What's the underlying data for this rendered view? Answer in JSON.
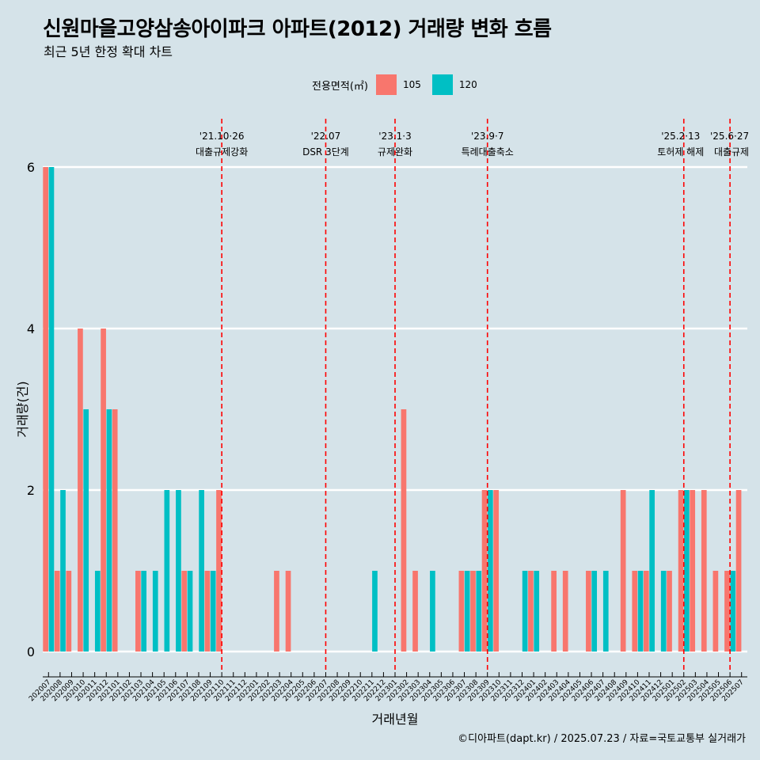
{
  "title": "신원마을고양삼송아이파크 아파트(2012) 거래량 변화 흐름",
  "subtitle": "최근 5년 한정 확대 차트",
  "caption": "©디아파트(dapt.kr) / 2025.07.23 / 자료=국토교통부 실거래가",
  "legend": {
    "title": "전용면적(㎡)",
    "items": [
      {
        "label": "105",
        "color": "#f8766d"
      },
      {
        "label": "120",
        "color": "#00bfc4"
      }
    ]
  },
  "chart_data": {
    "type": "bar",
    "title": "신원마을고양삼송아이파크 아파트(2012) 거래량 변화 흐름",
    "xlabel": "거래년월",
    "ylabel": "거래량(건)",
    "ylim": [
      0,
      6
    ],
    "yticks": [
      0,
      2,
      4,
      6
    ],
    "categories": [
      "202007",
      "202008",
      "202009",
      "202010",
      "202011",
      "202012",
      "202101",
      "202102",
      "202103",
      "202104",
      "202105",
      "202106",
      "202107",
      "202108",
      "202109",
      "202110",
      "202111",
      "202112",
      "202201",
      "202202",
      "202203",
      "202204",
      "202205",
      "202206",
      "202207",
      "202208",
      "202209",
      "202210",
      "202211",
      "202212",
      "202301",
      "202302",
      "202303",
      "202304",
      "202305",
      "202306",
      "202307",
      "202308",
      "202309",
      "202310",
      "202311",
      "202312",
      "202401",
      "202402",
      "202403",
      "202404",
      "202405",
      "202406",
      "202407",
      "202408",
      "202409",
      "202410",
      "202411",
      "202412",
      "202501",
      "202502",
      "202503",
      "202504",
      "202505",
      "202506",
      "202507"
    ],
    "series": [
      {
        "name": "105",
        "color": "#f8766d",
        "values": [
          6,
          1,
          1,
          4,
          0,
          4,
          3,
          0,
          1,
          0,
          0,
          0,
          1,
          0,
          1,
          2,
          0,
          0,
          0,
          0,
          1,
          1,
          0,
          0,
          0,
          0,
          0,
          0,
          0,
          0,
          0,
          3,
          1,
          0,
          0,
          0,
          1,
          1,
          2,
          2,
          0,
          0,
          1,
          0,
          1,
          1,
          0,
          1,
          0,
          0,
          2,
          1,
          1,
          0,
          1,
          2,
          2,
          2,
          1,
          1,
          2
        ]
      },
      {
        "name": "120",
        "color": "#00bfc4",
        "values": [
          6,
          2,
          0,
          3,
          1,
          3,
          0,
          0,
          1,
          1,
          2,
          2,
          1,
          2,
          1,
          0,
          0,
          0,
          0,
          0,
          0,
          0,
          0,
          0,
          0,
          0,
          0,
          0,
          1,
          0,
          0,
          0,
          0,
          1,
          0,
          0,
          1,
          1,
          2,
          0,
          0,
          1,
          1,
          0,
          0,
          0,
          0,
          1,
          1,
          0,
          0,
          1,
          2,
          1,
          0,
          2,
          0,
          0,
          0,
          1,
          0
        ]
      }
    ],
    "annotations": [
      {
        "x": "202110",
        "line1": "'21.10·26",
        "line2": "대출규제강화"
      },
      {
        "x": "202207",
        "line1": "'22.07",
        "line2": "DSR 3단계"
      },
      {
        "x": "202301",
        "line1": "'23.1·3",
        "line2": "규제완화"
      },
      {
        "x": "202309",
        "line1": "'23.9·7",
        "line2": "특례대출축소"
      },
      {
        "x": "202502",
        "line1": "'25.2·13",
        "line2": "토허제 해제"
      },
      {
        "x": "202506",
        "line1": "'25.6·27",
        "line2": "대출규제"
      }
    ]
  }
}
